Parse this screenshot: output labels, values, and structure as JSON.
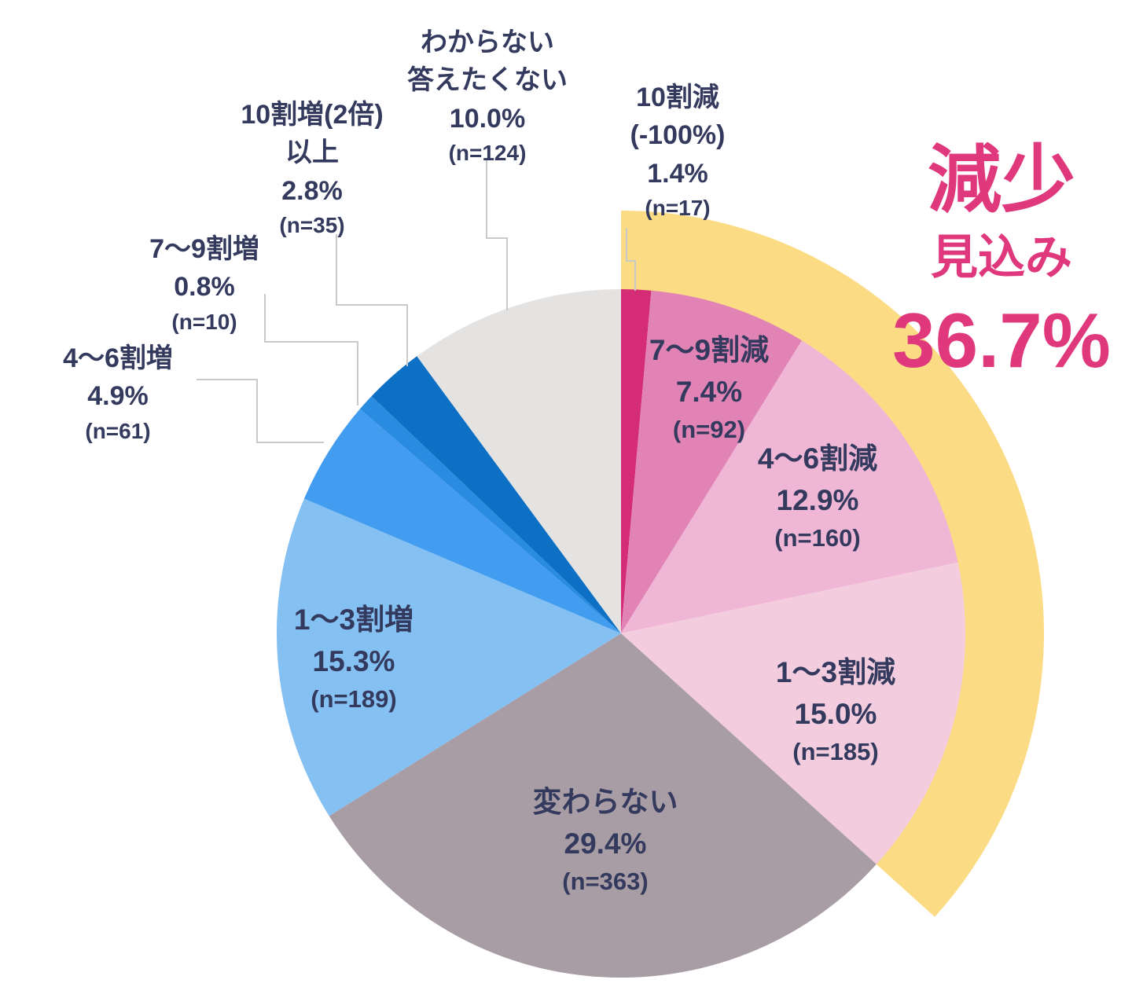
{
  "title": {
    "line1": "減少",
    "line2": "見込み",
    "value": "36.7%",
    "color": "#E0387D"
  },
  "chart_data": {
    "type": "pie",
    "start_angle_deg": 0,
    "direction": "clockwise",
    "text_color": "#333A5E",
    "leader_line_color": "#C9C9C9",
    "background_color": "#FFFFFF",
    "segments": [
      {
        "key": "dec100",
        "label": "10割減",
        "sublabel": "(-100%)",
        "value_pct": 1.4,
        "pct_text": "1.4%",
        "n": 17,
        "n_text": "(n=17)",
        "color": "#D52C76"
      },
      {
        "key": "dec79",
        "label": "7〜9割減",
        "value_pct": 7.4,
        "pct_text": "7.4%",
        "n": 92,
        "n_text": "(n=92)",
        "color": "#E183B4"
      },
      {
        "key": "dec46",
        "label": "4〜6割減",
        "value_pct": 12.9,
        "pct_text": "12.9%",
        "n": 160,
        "n_text": "(n=160)",
        "color": "#EFB7D5"
      },
      {
        "key": "dec13",
        "label": "1〜3割減",
        "value_pct": 15.0,
        "pct_text": "15.0%",
        "n": 185,
        "n_text": "(n=185)",
        "color": "#F3CCDE"
      },
      {
        "key": "nochange",
        "label": "変わらない",
        "value_pct": 29.4,
        "pct_text": "29.4%",
        "n": 363,
        "n_text": "(n=363)",
        "color": "#A89CA5"
      },
      {
        "key": "inc13",
        "label": "1〜3割増",
        "value_pct": 15.3,
        "pct_text": "15.3%",
        "n": 189,
        "n_text": "(n=189)",
        "color": "#85C0F3"
      },
      {
        "key": "inc46",
        "label": "4〜6割増",
        "value_pct": 4.9,
        "pct_text": "4.9%",
        "n": 61,
        "n_text": "(n=61)",
        "color": "#429CEF"
      },
      {
        "key": "inc79",
        "label": "7〜9割増",
        "value_pct": 0.8,
        "pct_text": "0.8%",
        "n": 10,
        "n_text": "(n=10)",
        "color": "#2A8CE0"
      },
      {
        "key": "inc100plus",
        "label": "10割増(2倍)",
        "sublabel": "以上",
        "value_pct": 2.8,
        "pct_text": "2.8%",
        "n": 35,
        "n_text": "(n=35)",
        "color": "#0E70C4"
      },
      {
        "key": "unknown",
        "label": "わからない",
        "sublabel": "答えたくない",
        "value_pct": 10.0,
        "pct_text": "10.0%",
        "n": 124,
        "n_text": "(n=124)",
        "color": "#E4E3E1"
      }
    ],
    "highlight": {
      "label": "減少見込み",
      "value_pct": 36.7,
      "segments_covered": [
        "10割減",
        "7〜9割減",
        "4〜6割減",
        "1〜3割減"
      ],
      "color": "#FBDC84"
    }
  }
}
